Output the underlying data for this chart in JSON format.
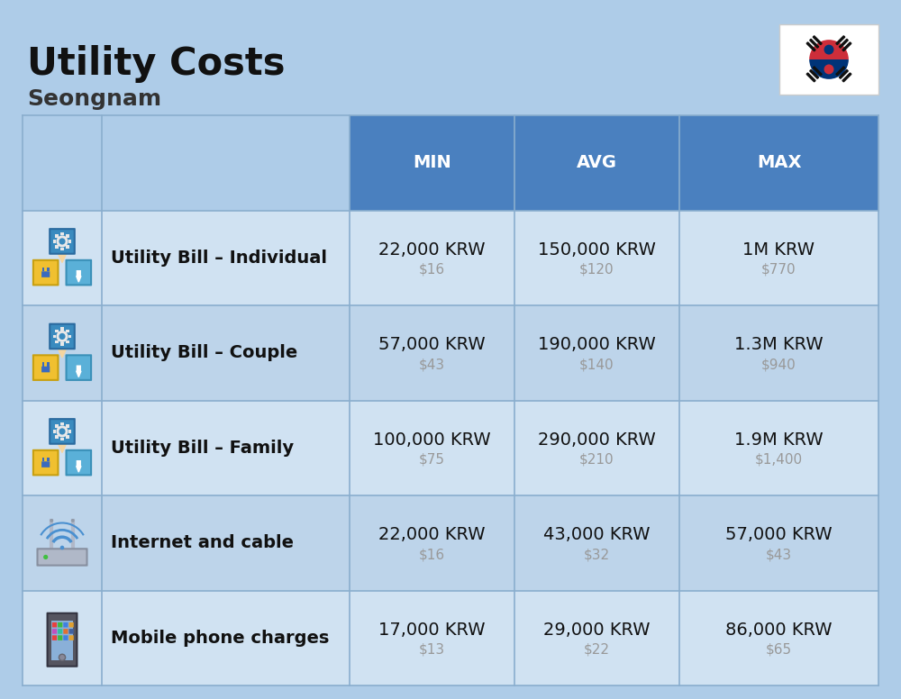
{
  "title": "Utility Costs",
  "subtitle": "Seongnam",
  "bg_color": "#aecce8",
  "header_bg_color": "#4a80bf",
  "header_text_color": "#ffffff",
  "row_light_color": "#d0e2f2",
  "row_dark_color": "#bdd4ea",
  "divider_color": "#8aaece",
  "title_color": "#111111",
  "subtitle_color": "#333333",
  "label_color": "#111111",
  "value_color": "#111111",
  "usd_color": "#999999",
  "col_headers": [
    "MIN",
    "AVG",
    "MAX"
  ],
  "rows": [
    {
      "label": "Utility Bill – Individual",
      "min_krw": "22,000 KRW",
      "min_usd": "$16",
      "avg_krw": "150,000 KRW",
      "avg_usd": "$120",
      "max_krw": "1M KRW",
      "max_usd": "$770",
      "icon": "utility"
    },
    {
      "label": "Utility Bill – Couple",
      "min_krw": "57,000 KRW",
      "min_usd": "$43",
      "avg_krw": "190,000 KRW",
      "avg_usd": "$140",
      "max_krw": "1.3M KRW",
      "max_usd": "$940",
      "icon": "utility"
    },
    {
      "label": "Utility Bill – Family",
      "min_krw": "100,000 KRW",
      "min_usd": "$75",
      "avg_krw": "290,000 KRW",
      "avg_usd": "$210",
      "max_krw": "1.9M KRW",
      "max_usd": "$1,400",
      "icon": "utility"
    },
    {
      "label": "Internet and cable",
      "min_krw": "22,000 KRW",
      "min_usd": "$16",
      "avg_krw": "43,000 KRW",
      "avg_usd": "$32",
      "max_krw": "57,000 KRW",
      "max_usd": "$43",
      "icon": "internet"
    },
    {
      "label": "Mobile phone charges",
      "min_krw": "17,000 KRW",
      "min_usd": "$13",
      "avg_krw": "29,000 KRW",
      "avg_usd": "$22",
      "max_krw": "86,000 KRW",
      "max_usd": "$65",
      "icon": "mobile"
    }
  ],
  "title_fontsize": 30,
  "subtitle_fontsize": 18,
  "header_fontsize": 14,
  "label_fontsize": 14,
  "value_fontsize": 14,
  "usd_fontsize": 11
}
